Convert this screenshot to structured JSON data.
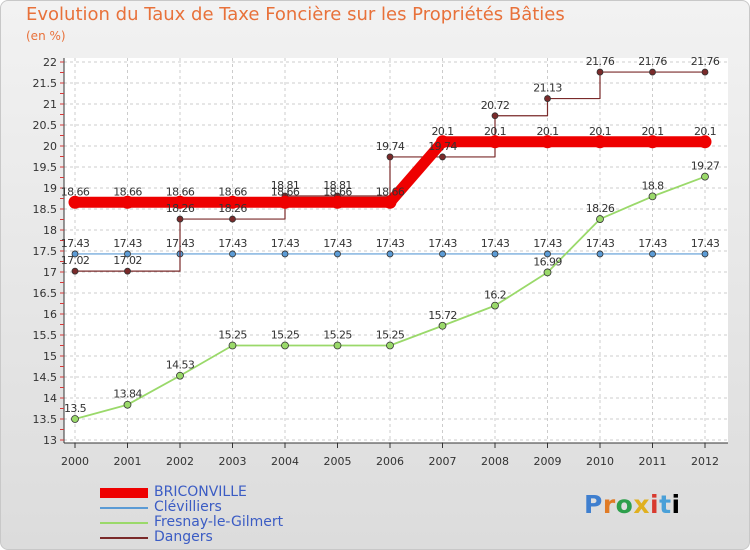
{
  "title": "Evolution du Taux de Taxe Foncière sur les Propriétés Bâties",
  "unit": "(en %)",
  "logo": {
    "text": "Proxiti"
  },
  "chart_data": {
    "type": "line",
    "categories": [
      "2000",
      "2001",
      "2002",
      "2003",
      "2004",
      "2005",
      "2006",
      "2007",
      "2008",
      "2009",
      "2010",
      "2011",
      "2012"
    ],
    "ylim": [
      13,
      22
    ],
    "yticks": [
      13,
      13.5,
      14,
      14.5,
      15,
      15.5,
      16,
      16.5,
      17,
      17.5,
      18,
      18.5,
      19,
      19.5,
      20,
      20.5,
      21,
      21.5,
      22
    ],
    "series": [
      {
        "name": "BRICONVILLE",
        "color": "#ee0000",
        "values": [
          18.66,
          18.66,
          18.66,
          18.66,
          18.66,
          18.66,
          18.66,
          20.1,
          20.1,
          20.1,
          20.1,
          20.1,
          20.1
        ]
      },
      {
        "name": "Clévilliers",
        "color": "#5b9bd5",
        "values": [
          17.43,
          17.43,
          17.43,
          17.43,
          17.43,
          17.43,
          17.43,
          17.43,
          17.43,
          17.43,
          17.43,
          17.43,
          17.43
        ]
      },
      {
        "name": "Fresnay-le-Gilmert",
        "color": "#9ad96a",
        "values": [
          13.5,
          13.84,
          14.53,
          15.25,
          15.25,
          15.25,
          15.25,
          15.72,
          16.2,
          16.99,
          18.26,
          18.8,
          19.27
        ]
      },
      {
        "name": "Dangers",
        "color": "#7a2a2a",
        "values": [
          17.02,
          17.02,
          18.26,
          18.26,
          18.81,
          18.81,
          19.74,
          19.74,
          20.72,
          21.13,
          21.76,
          21.76,
          21.76
        ]
      }
    ]
  }
}
